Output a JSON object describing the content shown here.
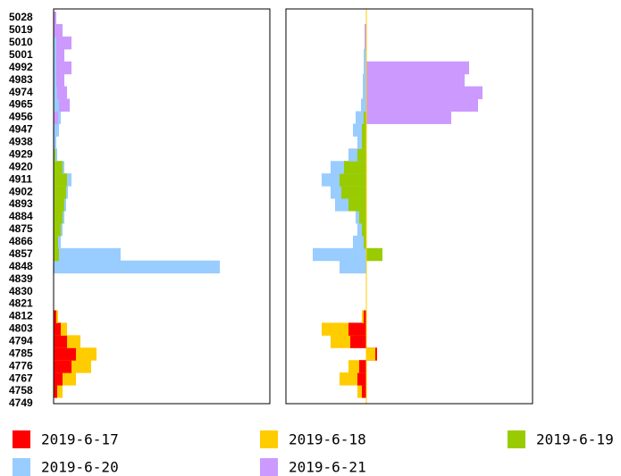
{
  "chart_data": {
    "type": "bar",
    "orientation": "horizontal",
    "categories": [
      4749,
      4758,
      4767,
      4776,
      4785,
      4794,
      4803,
      4812,
      4821,
      4830,
      4839,
      4848,
      4857,
      4866,
      4875,
      4884,
      4893,
      4902,
      4911,
      4920,
      4929,
      4938,
      4947,
      4956,
      4965,
      4974,
      4983,
      4992,
      5001,
      5010,
      5019,
      5028
    ],
    "xlim": [
      0,
      242
    ],
    "xlim_right": [
      -90,
      186
    ],
    "series": [
      {
        "name": "2019-6-17",
        "color": "#ff0000",
        "values": [
          0,
          4,
          10,
          20,
          25,
          15,
          8,
          3,
          0,
          0,
          0,
          0,
          0,
          0,
          0,
          0,
          0,
          0,
          0,
          0,
          0,
          0,
          0,
          0,
          0,
          0,
          0,
          0,
          0,
          0,
          0,
          0
        ],
        "net_values": [
          0,
          -5,
          -10,
          -8,
          12,
          -18,
          -20,
          -3,
          0,
          0,
          0,
          0,
          0,
          0,
          0,
          0,
          0,
          0,
          0,
          0,
          0,
          0,
          0,
          0,
          0,
          0,
          0,
          0,
          0,
          0,
          0,
          0
        ]
      },
      {
        "name": "2019-6-18",
        "color": "#ffcc00",
        "values": [
          0,
          10,
          25,
          42,
          48,
          30,
          15,
          5,
          0,
          0,
          0,
          0,
          0,
          0,
          0,
          0,
          0,
          0,
          0,
          0,
          0,
          0,
          0,
          0,
          0,
          0,
          0,
          0,
          0,
          0,
          0,
          0
        ],
        "net_values": [
          0,
          -10,
          -30,
          -20,
          10,
          -40,
          -50,
          -5,
          0,
          0,
          0,
          0,
          0,
          0,
          0,
          0,
          0,
          0,
          0,
          0,
          0,
          0,
          0,
          0,
          0,
          0,
          0,
          0,
          0,
          0,
          0,
          0
        ]
      },
      {
        "name": "2019-6-19",
        "color": "#99cc00",
        "values": [
          0,
          0,
          0,
          0,
          0,
          0,
          0,
          0,
          0,
          0,
          0,
          0,
          6,
          5,
          8,
          10,
          12,
          14,
          15,
          10,
          2,
          0,
          0,
          0,
          0,
          0,
          0,
          0,
          0,
          0,
          0,
          0
        ],
        "net_values": [
          0,
          0,
          0,
          0,
          0,
          0,
          0,
          0,
          0,
          0,
          0,
          0,
          18,
          -3,
          -5,
          -8,
          -20,
          -28,
          -30,
          -25,
          -10,
          -5,
          -5,
          -3,
          0,
          0,
          0,
          0,
          0,
          0,
          0,
          0
        ]
      },
      {
        "name": "2019-6-20",
        "color": "#99ccff",
        "values": [
          0,
          0,
          0,
          0,
          0,
          0,
          0,
          0,
          0,
          0,
          0,
          186,
          75,
          8,
          10,
          12,
          14,
          16,
          20,
          12,
          4,
          3,
          6,
          8,
          6,
          4,
          3,
          3,
          3,
          3,
          0,
          0
        ],
        "net_values": [
          0,
          0,
          0,
          0,
          0,
          0,
          0,
          0,
          0,
          0,
          0,
          -30,
          -60,
          -15,
          -10,
          -12,
          -35,
          -40,
          -50,
          -40,
          -20,
          -10,
          -15,
          -12,
          -6,
          -4,
          -4,
          -3,
          -3,
          -2,
          0,
          0
        ]
      },
      {
        "name": "2019-6-21",
        "color": "#cc99ff",
        "values": [
          0,
          0,
          0,
          0,
          0,
          0,
          0,
          0,
          0,
          0,
          0,
          0,
          0,
          0,
          0,
          0,
          0,
          0,
          0,
          0,
          0,
          0,
          0,
          5,
          18,
          15,
          12,
          20,
          12,
          20,
          10,
          3
        ],
        "net_values": [
          0,
          0,
          0,
          0,
          0,
          0,
          0,
          0,
          0,
          0,
          0,
          0,
          0,
          0,
          0,
          0,
          0,
          0,
          0,
          0,
          0,
          0,
          0,
          95,
          125,
          130,
          110,
          115,
          0,
          -2,
          -2,
          0
        ]
      }
    ]
  }
}
